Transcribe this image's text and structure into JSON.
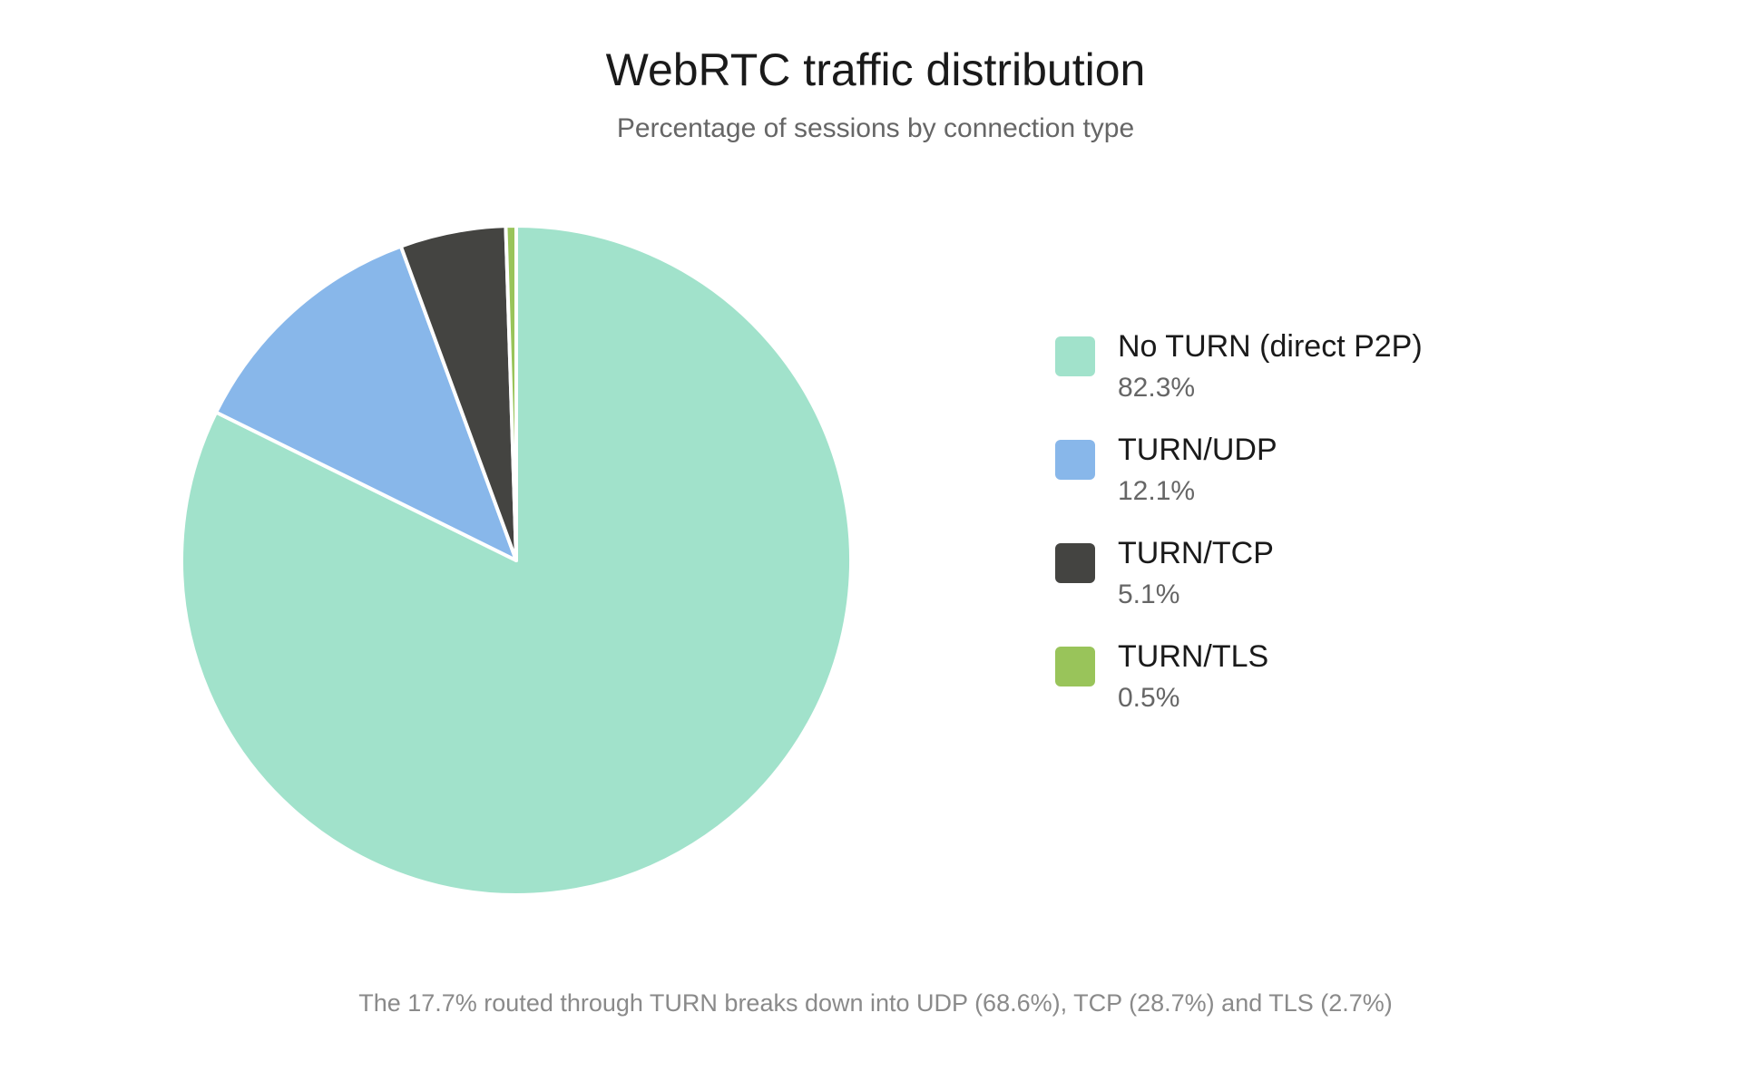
{
  "chart_data": {
    "type": "pie",
    "title": "WebRTC traffic distribution",
    "subtitle": "Percentage of sessions by connection type",
    "categories": [
      "No TURN (direct P2P)",
      "TURN/UDP",
      "TURN/TCP",
      "TURN/TLS"
    ],
    "values": [
      82.3,
      12.1,
      5.1,
      0.5
    ],
    "value_labels": [
      "82.3%",
      "12.1%",
      "5.1%",
      "0.5%"
    ],
    "colors": [
      "#a1e2cb",
      "#88b7ea",
      "#444441",
      "#99c45a"
    ],
    "legend": "right",
    "note": "The 17.7% routed through TURN breaks down into UDP (68.6%), TCP (28.7%) and TLS (2.7%)"
  }
}
